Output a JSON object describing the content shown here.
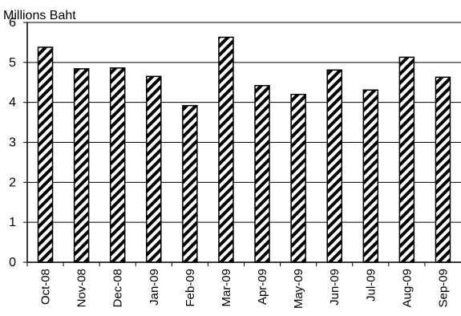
{
  "chart_data": {
    "type": "bar",
    "ylabel": "Millions Baht",
    "categories": [
      "Oct-08",
      "Nov-08",
      "Dec-08",
      "Jan-09",
      "Feb-09",
      "Mar-09",
      "Apr-09",
      "May-09",
      "Jun-09",
      "Jul-09",
      "Aug-09",
      "Sep-09"
    ],
    "values": [
      5.38,
      4.84,
      4.86,
      4.65,
      3.92,
      5.63,
      4.42,
      4.2,
      4.81,
      4.31,
      5.13,
      4.63
    ],
    "ylim": [
      0,
      6
    ],
    "yticks": [
      "0",
      "1",
      "2",
      "3",
      "4",
      "5",
      "6"
    ],
    "grid": true,
    "bar_fill": "diagonal-hatch",
    "bar_color": "#000000",
    "legend": "none"
  }
}
